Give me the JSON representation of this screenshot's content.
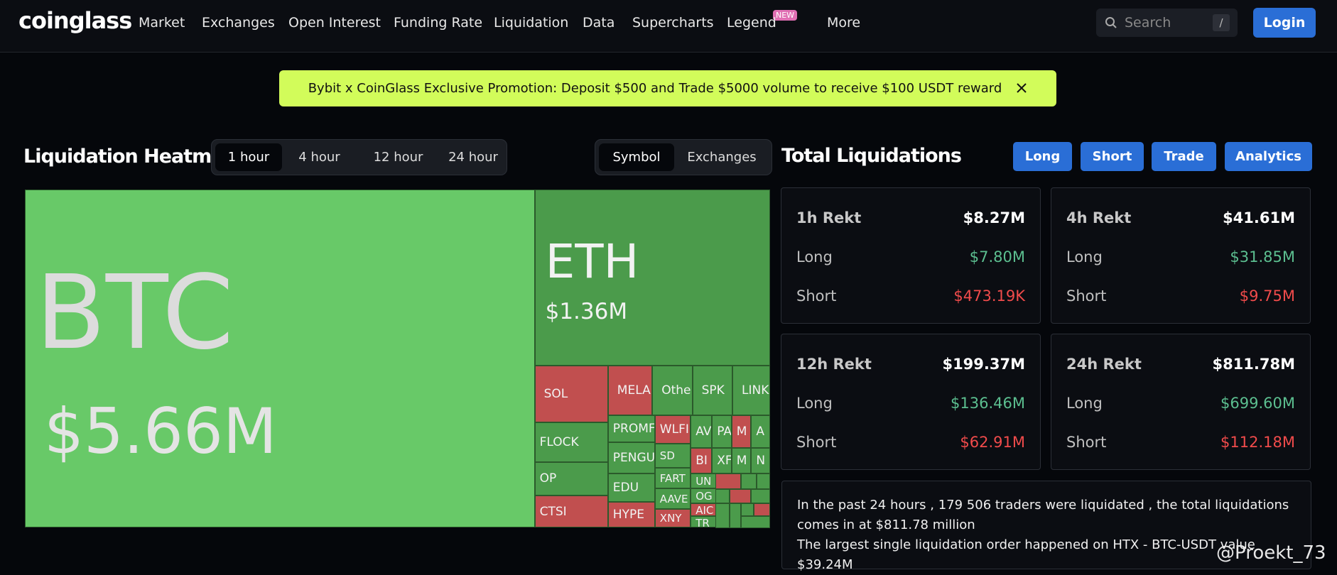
{
  "nav": {
    "logo": "coinglass",
    "items": [
      "Market",
      "Exchanges",
      "Open Interest",
      "Funding Rate",
      "Liquidation",
      "Data",
      "Supercharts",
      "Legend",
      "More"
    ],
    "badge": "NEW",
    "search_placeholder": "Search",
    "search_shortcut": "/",
    "login": "Login"
  },
  "banner": {
    "text": "Bybit x CoinGlass Exclusive Promotion: Deposit $500 and Trade $5000 volume to receive $100 USDT reward"
  },
  "heatmap": {
    "title": "Liquidation Heatmap",
    "periods": [
      "1 hour",
      "4 hour",
      "12 hour",
      "24 hour"
    ],
    "groupings": [
      "Symbol",
      "Exchanges"
    ],
    "tiles": [
      {
        "label": "BTC",
        "value_label": "$5.66M",
        "color": "#68c968"
      },
      {
        "label": "ETH",
        "value_label": "$1.36M",
        "color": "#4b9b4b"
      },
      {
        "label": "SOL",
        "color": "#c14f4f"
      },
      {
        "label": "FLOCK",
        "color": "#4b9b4b"
      },
      {
        "label": "OP",
        "color": "#4b9b4b"
      },
      {
        "label": "CTSI",
        "color": "#c14f4f"
      },
      {
        "label": "MELAN",
        "color": "#c14f4f"
      },
      {
        "label": "Others",
        "color": "#4b9b4b"
      },
      {
        "label": "SPK",
        "color": "#4b9b4b"
      },
      {
        "label": "LINK",
        "color": "#4b9b4b"
      },
      {
        "label": "PROMF",
        "color": "#4b9b4b"
      },
      {
        "label": "PENGU",
        "color": "#4b9b4b"
      },
      {
        "label": "EDU",
        "color": "#4b9b4b"
      },
      {
        "label": "HYPE",
        "color": "#c14f4f"
      },
      {
        "label": "WLFI",
        "color": "#c14f4f"
      },
      {
        "label": "SD",
        "color": "#4b9b4b"
      },
      {
        "label": "FART",
        "color": "#4b9b4b"
      },
      {
        "label": "AAVE",
        "color": "#4b9b4b"
      },
      {
        "label": "XNY",
        "color": "#c14f4f"
      },
      {
        "label": "AV",
        "color": "#4b9b4b"
      },
      {
        "label": "PA",
        "color": "#4b9b4b"
      },
      {
        "label": "M",
        "color": "#c14f4f"
      },
      {
        "label": "A",
        "color": "#4b9b4b"
      },
      {
        "label": "BI",
        "color": "#c14f4f"
      },
      {
        "label": "XF",
        "color": "#4b9b4b"
      },
      {
        "label": "M",
        "color": "#4b9b4b"
      },
      {
        "label": "N",
        "color": "#4b9b4b"
      },
      {
        "label": "UN",
        "color": "#4b9b4b"
      },
      {
        "label": "OG",
        "color": "#4b9b4b"
      },
      {
        "label": "AIC",
        "color": "#c14f4f"
      },
      {
        "label": "TR",
        "color": "#4b9b4b"
      }
    ]
  },
  "totals": {
    "title": "Total Liquidations",
    "buttons": [
      "Long",
      "Short",
      "Trade",
      "Analytics"
    ],
    "cards": [
      {
        "period": "1h Rekt",
        "total": "$8.27M",
        "rows": [
          {
            "label": "Long",
            "value": "$7.80M"
          },
          {
            "label": "Short",
            "value": "$473.19K"
          }
        ]
      },
      {
        "period": "4h Rekt",
        "total": "$41.61M",
        "rows": [
          {
            "label": "Long",
            "value": "$31.85M"
          },
          {
            "label": "Short",
            "value": "$9.75M"
          }
        ]
      },
      {
        "period": "12h Rekt",
        "total": "$199.37M",
        "rows": [
          {
            "label": "Long",
            "value": "$136.46M"
          },
          {
            "label": "Short",
            "value": "$62.91M"
          }
        ]
      },
      {
        "period": "24h Rekt",
        "total": "$811.78M",
        "rows": [
          {
            "label": "Long",
            "value": "$699.60M"
          },
          {
            "label": "Short",
            "value": "$112.18M"
          }
        ]
      }
    ]
  },
  "summary": {
    "lines": [
      "In the past 24 hours , 179 506 traders were liquidated , the total liquidations comes in at $811.78 million",
      "The largest single liquidation order happened on HTX - BTC-USDT value $39.24M"
    ]
  },
  "watermark": "@Proekt_73"
}
